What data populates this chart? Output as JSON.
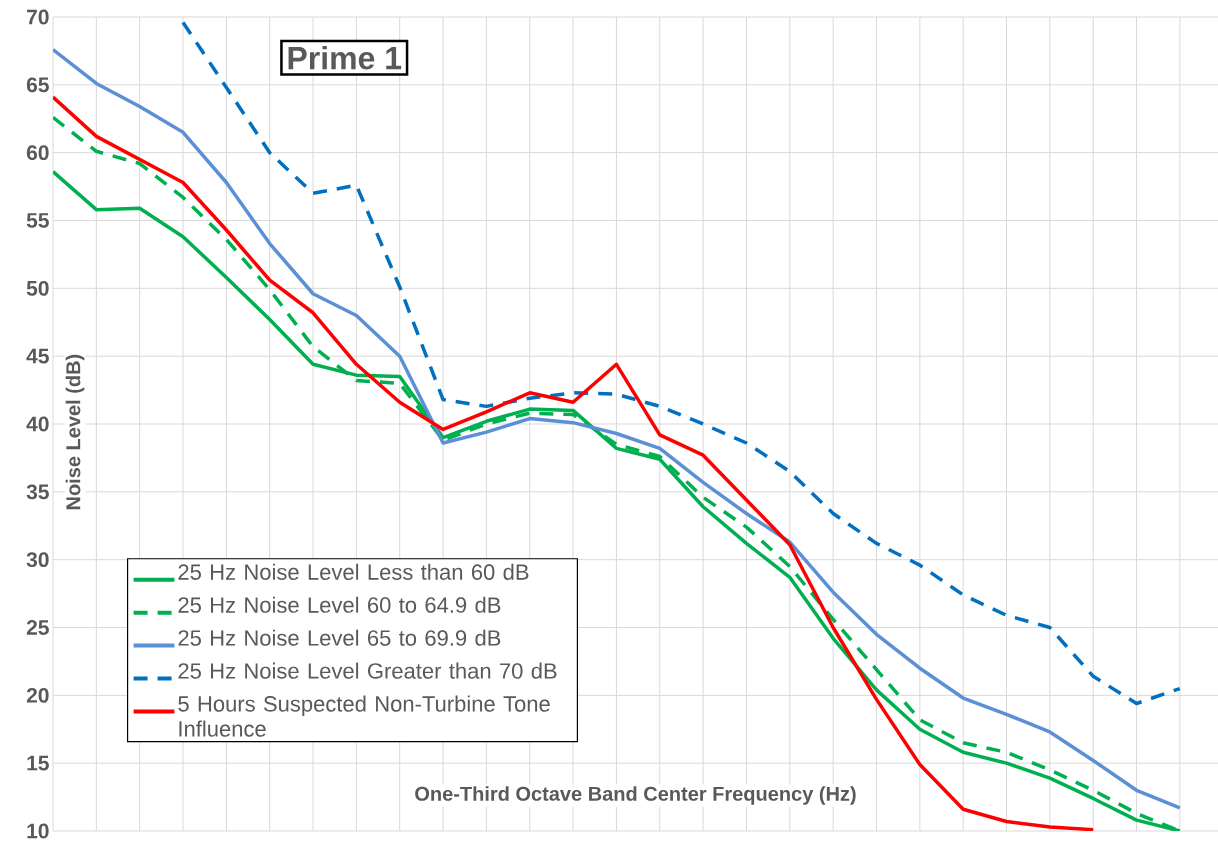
{
  "chart_data": {
    "type": "line",
    "xlabel": "One-Third Octave Band Center Frequency (Hz)",
    "ylabel": "Noise Level (dB)",
    "annotations": [
      "Prime 1"
    ],
    "categories": [
      null,
      null,
      null,
      null,
      null,
      null,
      null,
      null,
      null,
      null,
      null,
      null,
      null,
      null,
      null,
      null,
      null,
      null,
      null,
      null,
      null,
      null,
      null,
      null,
      null,
      null,
      null
    ],
    "ylim": [
      10,
      70
    ],
    "yticks": [
      10,
      15,
      20,
      25,
      30,
      35,
      40,
      45,
      50,
      55,
      60,
      65,
      70
    ],
    "grid": true,
    "legend": "bottom left",
    "tick_labels": "y",
    "series": [
      {
        "name": "25 Hz Noise Level Less than 60 dB",
        "color": "#00b050",
        "line_style": "solid",
        "values": [
          58.6,
          55.8,
          55.9,
          53.8,
          50.8,
          47.7,
          44.4,
          43.6,
          43.5,
          39.0,
          40.2,
          41.1,
          41.0,
          38.2,
          37.4,
          33.9,
          31.2,
          28.7,
          24.2,
          20.4,
          17.5,
          15.8,
          15.0,
          13.9,
          12.4,
          10.8,
          10.0
        ]
      },
      {
        "name": "25 Hz Noise Level 60 to 64.9 dB",
        "color": "#00b050",
        "line_style": "dashed",
        "values": [
          62.6,
          60.1,
          59.2,
          56.7,
          53.6,
          49.9,
          45.7,
          43.2,
          43.0,
          38.8,
          40.0,
          40.8,
          40.7,
          38.5,
          37.6,
          34.6,
          32.4,
          29.5,
          25.6,
          21.9,
          18.2,
          16.5,
          15.8,
          14.5,
          13.0,
          11.3,
          10.0
        ]
      },
      {
        "name": "25 Hz Noise Level 65 to 69.9 dB",
        "color": "#5b8fd6",
        "line_style": "solid",
        "values": [
          67.6,
          65.1,
          63.4,
          61.5,
          57.8,
          53.3,
          49.6,
          48.0,
          45.0,
          38.6,
          39.4,
          40.4,
          40.1,
          39.3,
          38.2,
          35.7,
          33.4,
          31.3,
          27.6,
          24.5,
          22.0,
          19.8,
          18.6,
          17.3,
          15.2,
          13.0,
          11.7
        ]
      },
      {
        "name": "25 Hz Noise Level Greater than 70 dB",
        "color": "#0070c0",
        "line_style": "dashed",
        "values": [
          null,
          null,
          null,
          69.6,
          64.8,
          60.0,
          57.0,
          57.6,
          50.1,
          41.8,
          41.3,
          41.9,
          42.3,
          42.2,
          41.3,
          40.0,
          38.6,
          36.5,
          33.4,
          31.2,
          29.6,
          27.4,
          25.9,
          25.0,
          21.4,
          19.4,
          20.5
        ]
      },
      {
        "name": "5 Hours Suspected Non-Turbine Tone Influence",
        "color": "#ff0000",
        "line_style": "solid",
        "values": [
          64.1,
          61.2,
          59.5,
          57.8,
          54.3,
          50.6,
          48.2,
          44.4,
          41.6,
          39.6,
          40.9,
          42.3,
          41.6,
          44.4,
          39.2,
          37.7,
          34.4,
          31.1,
          25.0,
          19.7,
          14.9,
          11.6,
          10.7,
          10.3,
          10.1,
          null,
          null
        ]
      }
    ]
  }
}
